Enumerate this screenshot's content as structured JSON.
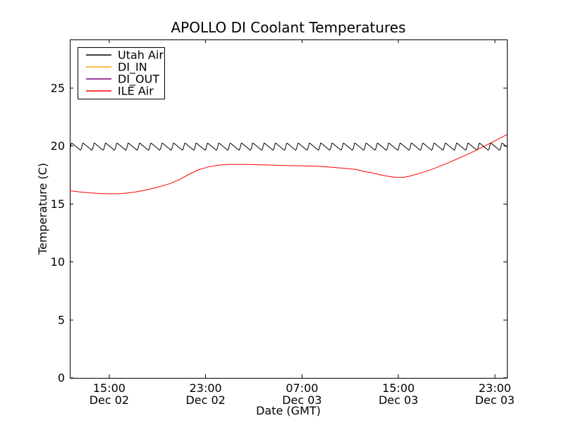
{
  "chart_data": {
    "type": "line",
    "title": "APOLLO DI Coolant Temperatures",
    "xlabel": "Date (GMT)",
    "ylabel": "Temperature (C)",
    "x_unit": "hours since Dec 02 00:00 GMT",
    "xlim": [
      11.73,
      48.0
    ],
    "ylim": [
      0,
      29.2
    ],
    "yticks": [
      0,
      5,
      10,
      15,
      20,
      25
    ],
    "xticks": [
      {
        "hour": 15,
        "line1": "15:00",
        "line2": "Dec 02"
      },
      {
        "hour": 23,
        "line1": "23:00",
        "line2": "Dec 02"
      },
      {
        "hour": 31,
        "line1": "07:00",
        "line2": "Dec 03"
      },
      {
        "hour": 39,
        "line1": "15:00",
        "line2": "Dec 03"
      },
      {
        "hour": 47,
        "line1": "23:00",
        "line2": "Dec 03"
      }
    ],
    "grid": false,
    "legend_position": "upper left",
    "series": [
      {
        "name": "Utah Air",
        "color": "#000000",
        "style": "sawtooth-oscillation",
        "sawtooth": {
          "period_hours": 0.94,
          "min": 19.62,
          "max": 20.28,
          "rise_fraction": 0.18,
          "start_phase": 0.55
        },
        "points": []
      },
      {
        "name": "DI_IN",
        "color": "#ffa500",
        "style": "line",
        "points": []
      },
      {
        "name": "DI_OUT",
        "color": "#800080",
        "style": "line",
        "points": []
      },
      {
        "name": "ILE Air",
        "color": "#ff0000",
        "style": "line",
        "points": [
          [
            11.73,
            16.15
          ],
          [
            12.3,
            16.08
          ],
          [
            13.0,
            16.0
          ],
          [
            14.0,
            15.92
          ],
          [
            15.0,
            15.88
          ],
          [
            16.0,
            15.9
          ],
          [
            17.0,
            16.02
          ],
          [
            18.0,
            16.2
          ],
          [
            19.0,
            16.45
          ],
          [
            20.0,
            16.75
          ],
          [
            20.8,
            17.1
          ],
          [
            21.6,
            17.55
          ],
          [
            22.4,
            17.95
          ],
          [
            23.2,
            18.2
          ],
          [
            24.0,
            18.35
          ],
          [
            25.0,
            18.42
          ],
          [
            26.5,
            18.42
          ],
          [
            28.0,
            18.38
          ],
          [
            29.5,
            18.33
          ],
          [
            31.0,
            18.3
          ],
          [
            32.5,
            18.25
          ],
          [
            33.5,
            18.18
          ],
          [
            34.5,
            18.08
          ],
          [
            35.5,
            17.98
          ],
          [
            36.2,
            17.8
          ],
          [
            36.8,
            17.7
          ],
          [
            37.5,
            17.52
          ],
          [
            38.2,
            17.38
          ],
          [
            38.8,
            17.3
          ],
          [
            39.4,
            17.3
          ],
          [
            40.0,
            17.42
          ],
          [
            41.0,
            17.72
          ],
          [
            42.0,
            18.08
          ],
          [
            43.0,
            18.5
          ],
          [
            44.0,
            18.95
          ],
          [
            45.0,
            19.42
          ],
          [
            46.0,
            19.92
          ],
          [
            47.0,
            20.45
          ],
          [
            48.0,
            21.0
          ]
        ]
      }
    ]
  }
}
